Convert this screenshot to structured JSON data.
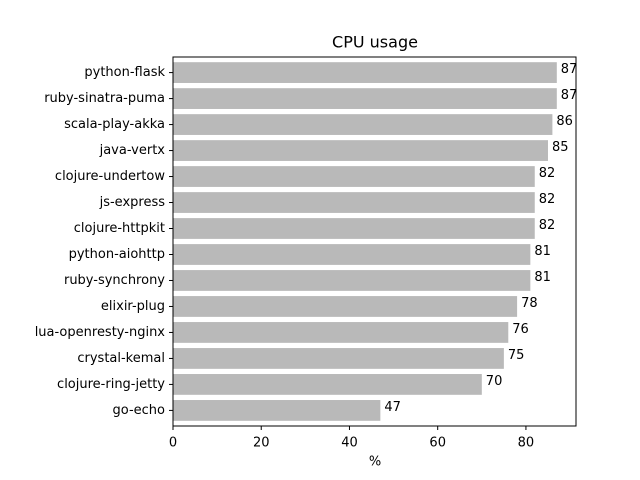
{
  "chart_data": {
    "type": "barh",
    "title": "CPU usage",
    "xlabel": "%",
    "categories": [
      "python-flask",
      "ruby-sinatra-puma",
      "scala-play-akka",
      "java-vertx",
      "clojure-undertow",
      "js-express",
      "clojure-httpkit",
      "python-aiohttp",
      "ruby-synchrony",
      "elixir-plug",
      "lua-openresty-nginx",
      "crystal-kemal",
      "clojure-ring-jetty",
      "go-echo"
    ],
    "values": [
      87,
      87,
      86,
      85,
      82,
      82,
      82,
      81,
      81,
      78,
      76,
      75,
      70,
      47
    ],
    "color": "#b9b9b9",
    "xlim": [
      0,
      91.35
    ],
    "xticks": [
      0,
      20,
      40,
      60,
      80
    ]
  }
}
